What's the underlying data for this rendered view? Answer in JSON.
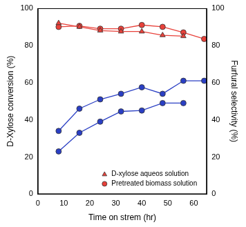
{
  "chart_data": {
    "type": "line",
    "x_label": "Time on strem (hr)",
    "y_label": "D-Xylose conversion (%)",
    "y2_label": "Furfural selectivity (%)",
    "x": [
      8,
      16,
      24,
      32,
      40,
      48,
      56,
      64
    ],
    "xlim": [
      0,
      65
    ],
    "xticks": [
      0,
      10,
      20,
      30,
      40,
      50,
      60
    ],
    "ylim": [
      0,
      100
    ],
    "yticks": [
      0,
      20,
      40,
      60,
      80,
      100
    ],
    "y2lim": [
      0,
      100
    ],
    "y2ticks": [
      0,
      20,
      40,
      60,
      80,
      100
    ],
    "grid": false,
    "legend": "lower right",
    "series": [
      {
        "name": "D-xylose aqueos solution",
        "color": "#e8413a",
        "marker": "triangle",
        "values": [
          92,
          90,
          88,
          87.5,
          87.5,
          85.5,
          85,
          null
        ]
      },
      {
        "name": "Pretreated biomass solution",
        "color": "#e8413a",
        "marker": "circle",
        "values": [
          90,
          90.5,
          89,
          89,
          91,
          90,
          87,
          83.5
        ]
      },
      {
        "name": "D-xylose aqueos solution",
        "color": "#2a3fc4",
        "marker": "circle",
        "axis": "y2",
        "values": [
          23,
          33,
          39,
          44.5,
          45,
          49,
          49,
          null
        ]
      },
      {
        "name": "Pretreated biomass solution",
        "color": "#2a3fc4",
        "marker": "circle",
        "axis": "y2",
        "values": [
          34,
          46,
          51,
          54,
          57.5,
          54,
          61,
          61
        ]
      }
    ]
  }
}
